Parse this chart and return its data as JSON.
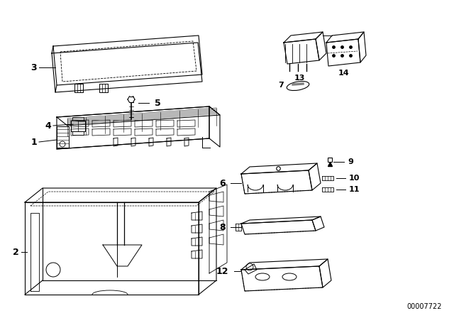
{
  "background_color": "#ffffff",
  "line_color": "#000000",
  "part_number": "00007722"
}
